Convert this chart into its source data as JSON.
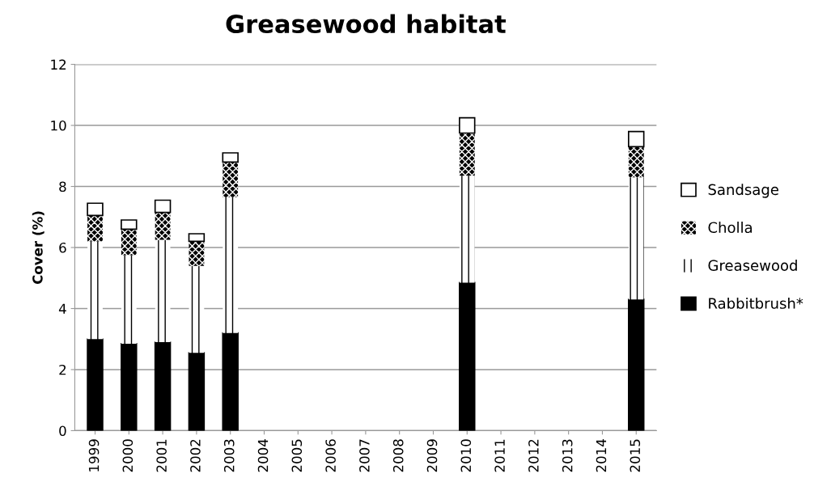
{
  "chart_data": {
    "type": "bar",
    "title": "Greasewood habitat",
    "ylabel": "Cover (%)",
    "stacked": true,
    "categories": [
      "1999",
      "2000",
      "2001",
      "2002",
      "2003",
      "2004",
      "2005",
      "2006",
      "2007",
      "2008",
      "2009",
      "2010",
      "2011",
      "2012",
      "2013",
      "2014",
      "2015"
    ],
    "series": [
      {
        "name": "Rabbitbrush*",
        "color": "#000000",
        "values": [
          3.0,
          2.85,
          2.9,
          2.55,
          3.2,
          null,
          null,
          null,
          null,
          null,
          null,
          4.85,
          null,
          null,
          null,
          null,
          4.3
        ]
      },
      {
        "name": "Greasewood",
        "color": "#ffffff",
        "values": [
          3.2,
          2.9,
          3.35,
          2.85,
          4.45,
          null,
          null,
          null,
          null,
          null,
          null,
          3.5,
          null,
          null,
          null,
          null,
          4.0
        ]
      },
      {
        "name": "Cholla",
        "color": "#000000",
        "values": [
          0.85,
          0.85,
          0.9,
          0.8,
          1.15,
          null,
          null,
          null,
          null,
          null,
          null,
          1.4,
          null,
          null,
          null,
          null,
          1.0
        ]
      },
      {
        "name": "Sandsage",
        "color": "#ffffff",
        "values": [
          0.4,
          0.3,
          0.4,
          0.25,
          0.3,
          null,
          null,
          null,
          null,
          null,
          null,
          0.5,
          null,
          null,
          null,
          null,
          0.5
        ]
      }
    ],
    "ylim": [
      0,
      12
    ],
    "yticks": [
      0,
      2,
      4,
      6,
      8,
      10,
      12
    ],
    "grid": "y",
    "legend": "right"
  }
}
